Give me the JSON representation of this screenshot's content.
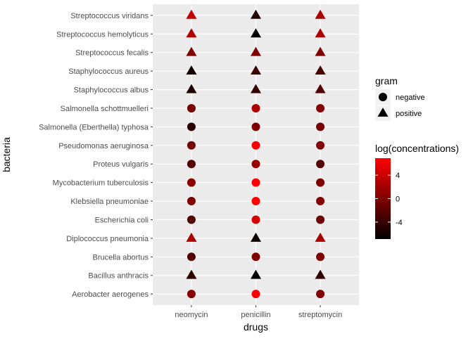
{
  "chart_data": {
    "type": "scatter",
    "title": "",
    "xlabel": "drugs",
    "ylabel": "bacteria",
    "x_categories": [
      "neomycin",
      "penicillin",
      "streptomycin"
    ],
    "y_categories": [
      "Aerobacter aerogenes",
      "Bacillus anthracis",
      "Brucella abortus",
      "Diplococcus pneumonia",
      "Escherichia coli",
      "Klebsiella pneumoniae",
      "Mycobacterium tuberculosis",
      "Proteus vulgaris",
      "Pseudomonas aeruginosa",
      "Salmonella (Eberthella) typhosa",
      "Salmonella schottmuelleri",
      "Staphylococcus albus",
      "Staphylococcus aureus",
      "Streptococcus fecalis",
      "Streptococcus hemolyticus",
      "Streptococcus viridans"
    ],
    "points": [
      {
        "bacteria": "Aerobacter aerogenes",
        "gram": "negative",
        "values": [
          0.5,
          6.7,
          0.0
        ]
      },
      {
        "bacteria": "Bacillus anthracis",
        "gram": "positive",
        "values": [
          -4.4,
          -6.9,
          -4.3
        ]
      },
      {
        "bacteria": "Brucella abortus",
        "gram": "negative",
        "values": [
          -2.3,
          0.0,
          0.0
        ]
      },
      {
        "bacteria": "Diplococcus pneumonia",
        "gram": "positive",
        "values": [
          2.3,
          -6.2,
          2.3
        ]
      },
      {
        "bacteria": "Escherichia coli",
        "gram": "negative",
        "values": [
          -2.3,
          4.6,
          -0.9
        ]
      },
      {
        "bacteria": "Klebsiella pneumoniae",
        "gram": "negative",
        "values": [
          0.0,
          6.8,
          0.2
        ]
      },
      {
        "bacteria": "Mycobacterium tuberculosis",
        "gram": "negative",
        "values": [
          0.7,
          6.7,
          0.0
        ]
      },
      {
        "bacteria": "Proteus vulgaris",
        "gram": "negative",
        "values": [
          -2.3,
          1.1,
          -2.3
        ]
      },
      {
        "bacteria": "Pseudomonas aeruginosa",
        "gram": "negative",
        "values": [
          -0.5,
          6.7,
          0.0
        ]
      },
      {
        "bacteria": "Salmonella (Eberthella) typhosa",
        "gram": "negative",
        "values": [
          -4.6,
          0.0,
          -0.4
        ]
      },
      {
        "bacteria": "Salmonella schottmuelleri",
        "gram": "negative",
        "values": [
          -0.4,
          2.3,
          0.3
        ]
      },
      {
        "bacteria": "Staphylococcus albus",
        "gram": "positive",
        "values": [
          -5.3,
          -3.9,
          -2.3
        ]
      },
      {
        "bacteria": "Staphylococcus aureus",
        "gram": "positive",
        "values": [
          -6.0,
          -3.5,
          -3.0
        ]
      },
      {
        "bacteria": "Streptococcus fecalis",
        "gram": "positive",
        "values": [
          0.0,
          0.0,
          0.0
        ]
      },
      {
        "bacteria": "Streptococcus hemolyticus",
        "gram": "positive",
        "values": [
          2.7,
          -6.9,
          2.3
        ]
      },
      {
        "bacteria": "Streptococcus viridans",
        "gram": "positive",
        "values": [
          3.6,
          -5.3,
          2.3
        ]
      }
    ],
    "color_scale": {
      "low": "#000000",
      "high": "#ff0000",
      "limits": [
        -6.9,
        6.9
      ],
      "breaks": [
        4,
        0,
        -4
      ],
      "break_labels": [
        "4",
        "0",
        "-4"
      ]
    },
    "legend": {
      "placement": "right",
      "shape_title": "gram",
      "shape_items": [
        {
          "label": "negative",
          "shape": "circle"
        },
        {
          "label": "positive",
          "shape": "triangle"
        }
      ],
      "color_title": "log(concentrations)"
    },
    "grid": true,
    "panel_background": "#ebebeb",
    "grid_color": "#ffffff"
  }
}
